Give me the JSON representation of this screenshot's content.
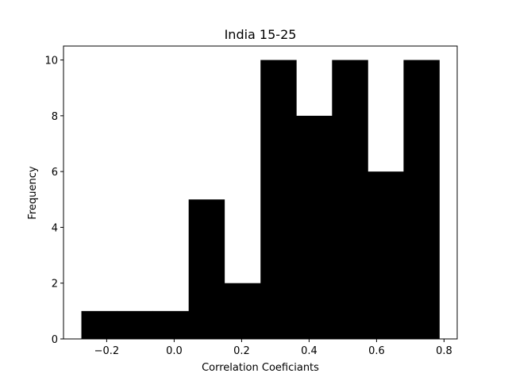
{
  "chart_data": {
    "type": "bar",
    "subtype": "histogram",
    "title": "India 15-25",
    "xlabel": "Correlation Coeficiants",
    "ylabel": "Frequency",
    "bin_edges": [
      -0.275,
      -0.169,
      -0.063,
      0.043,
      0.149,
      0.256,
      0.362,
      0.468,
      0.574,
      0.68,
      0.786
    ],
    "values": [
      1,
      1,
      1,
      5,
      2,
      10,
      8,
      10,
      6,
      10
    ],
    "xlim": [
      -0.328,
      0.839
    ],
    "ylim": [
      0,
      10.5
    ],
    "xticks": [
      -0.2,
      0.0,
      0.2,
      0.4,
      0.6,
      0.8
    ],
    "xtick_labels": [
      "−0.2",
      "0.0",
      "0.2",
      "0.4",
      "0.6",
      "0.8"
    ],
    "yticks": [
      0,
      2,
      4,
      6,
      8,
      10
    ],
    "ytick_labels": [
      "0",
      "2",
      "4",
      "6",
      "8",
      "10"
    ],
    "bar_color": "#000000",
    "grid": false,
    "legend": false
  }
}
